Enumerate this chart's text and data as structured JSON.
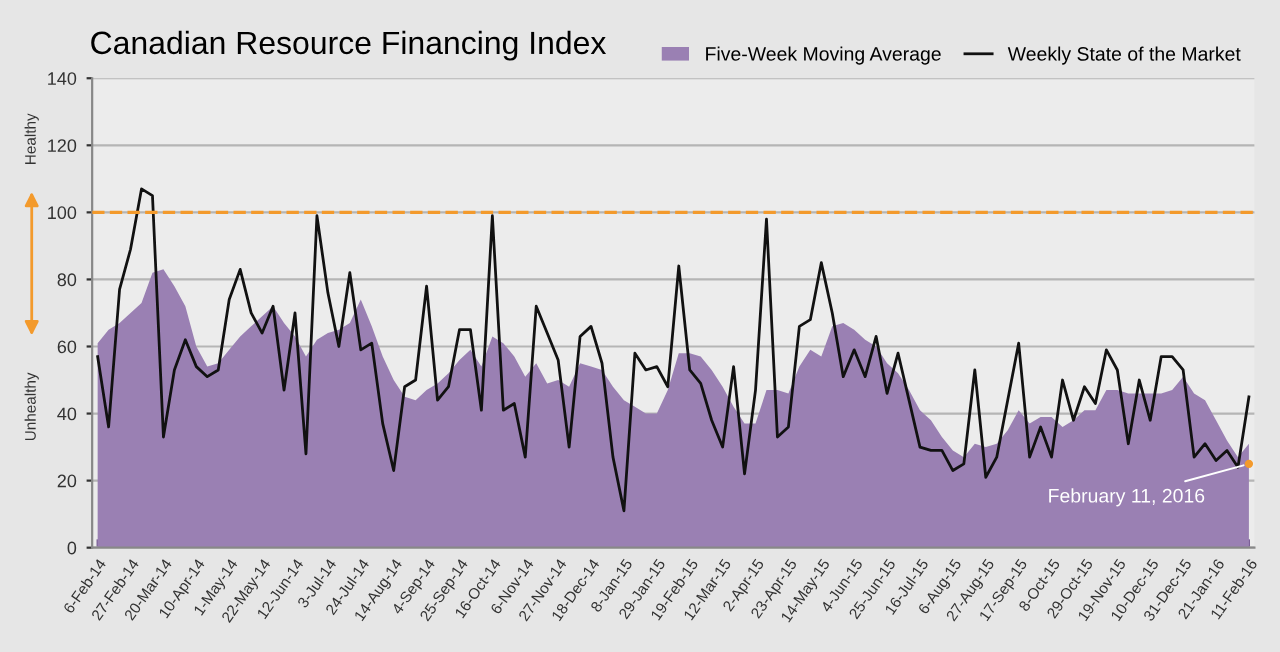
{
  "chart_data": {
    "type": "line",
    "title": "Canadian Resource Financing Index",
    "categories": [
      "6-Feb-14",
      null,
      null,
      "27-Feb-14",
      null,
      null,
      "20-Mar-14",
      null,
      null,
      "10-Apr-14",
      null,
      null,
      "1-May-14",
      null,
      null,
      "22-May-14",
      null,
      null,
      "12-Jun-14",
      null,
      null,
      "3-Jul-14",
      null,
      null,
      "24-Jul-14",
      null,
      null,
      "14-Aug-14",
      null,
      null,
      "4-Sep-14",
      null,
      null,
      "25-Sep-14",
      null,
      null,
      "16-Oct-14",
      null,
      null,
      "6-Nov-14",
      null,
      null,
      "27-Nov-14",
      null,
      null,
      "18-Dec-14",
      null,
      null,
      "8-Jan-15",
      null,
      null,
      "29-Jan-15",
      null,
      null,
      "19-Feb-15",
      null,
      null,
      "12-Mar-15",
      null,
      null,
      "2-Apr-15",
      null,
      null,
      "23-Apr-15",
      null,
      null,
      "14-May-15",
      null,
      null,
      "4-Jun-15",
      null,
      null,
      "25-Jun-15",
      null,
      null,
      "16-Jul-15",
      null,
      null,
      "6-Aug-15",
      null,
      null,
      "27-Aug-15",
      null,
      null,
      "17-Sep-15",
      null,
      null,
      "8-Oct-15",
      null,
      null,
      "29-Oct-15",
      null,
      null,
      "19-Nov-15",
      null,
      null,
      "10-Dec-15",
      null,
      null,
      "31-Dec-15",
      null,
      null,
      "21-Jan-16",
      null,
      null,
      "11-Feb-16"
    ],
    "series": [
      {
        "name": "Five-Week Moving Average",
        "type": "area",
        "color": "#9a80b3",
        "values": [
          61,
          65,
          67,
          70,
          73,
          82,
          83,
          78,
          72,
          60,
          54,
          55,
          59,
          63,
          66,
          69,
          72,
          67,
          63,
          57,
          62,
          64,
          65,
          67,
          74,
          66,
          57,
          50,
          45,
          44,
          47,
          49,
          52,
          56,
          59,
          54,
          63,
          61,
          57,
          51,
          55,
          49,
          50,
          48,
          55,
          54,
          53,
          48,
          44,
          42,
          40,
          40,
          47,
          58,
          58,
          57,
          53,
          48,
          42,
          37,
          37,
          47,
          47,
          46,
          54,
          59,
          57,
          66,
          67,
          65,
          62,
          60,
          55,
          52,
          47,
          41,
          38,
          33,
          29,
          27,
          31,
          30,
          31,
          35,
          41,
          37,
          39,
          39,
          36,
          38,
          41,
          41,
          47,
          47,
          46,
          46,
          46,
          46,
          47,
          51,
          46,
          44,
          38,
          32,
          27,
          31
        ]
      },
      {
        "name": "Weekly State of the Market",
        "color": "#111111",
        "values": [
          57,
          36,
          77,
          89,
          107,
          105,
          33,
          53,
          62,
          54,
          51,
          53,
          74,
          83,
          70,
          64,
          72,
          47,
          70,
          28,
          99,
          76,
          60,
          82,
          59,
          61,
          37,
          23,
          48,
          50,
          78,
          44,
          48,
          65,
          65,
          41,
          99,
          41,
          43,
          27,
          72,
          64,
          56,
          30,
          63,
          66,
          55,
          27,
          11,
          58,
          53,
          54,
          48,
          84,
          53,
          49,
          38,
          30,
          54,
          22,
          47,
          98,
          33,
          36,
          66,
          68,
          85,
          70,
          51,
          59,
          51,
          63,
          46,
          58,
          44,
          30,
          29,
          29,
          23,
          25,
          53,
          21,
          27,
          44,
          61,
          27,
          36,
          27,
          50,
          38,
          48,
          43,
          59,
          53,
          31,
          50,
          38,
          57,
          57,
          53,
          27,
          31,
          26,
          29,
          24,
          45
        ]
      }
    ],
    "ylim": [
      0,
      140
    ],
    "yticks": [
      0,
      20,
      40,
      60,
      80,
      100,
      120,
      140
    ],
    "grid": "y",
    "legend": "top right",
    "ref_lines": [
      {
        "axis": "y",
        "value": 100,
        "color": "#f39a2c",
        "line_style": "dashed"
      }
    ],
    "annotations": [
      "Healthy",
      "Unhealthy",
      {
        "text": "February 11, 2016",
        "x": "11-Feb-16",
        "y": 25
      }
    ]
  }
}
